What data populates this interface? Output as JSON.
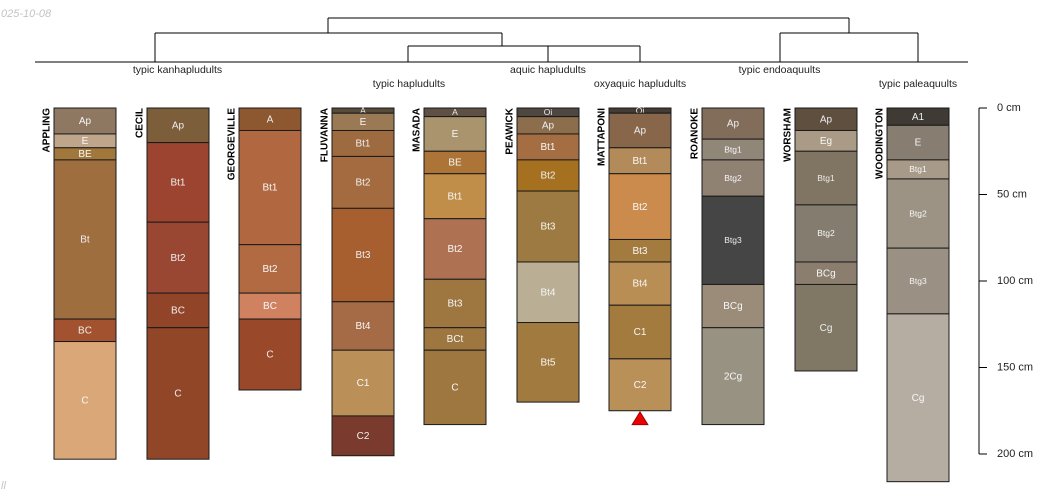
{
  "header": {
    "date_fragment": "025-10-08",
    "corner_fragment": "ll"
  },
  "chart_data": {
    "type": "soil-profile-sketch",
    "depth_unit": "cm",
    "depth_axis": {
      "ticks": [
        0,
        50,
        100,
        150,
        200
      ],
      "tick_labels": [
        "0 cm",
        "50 cm",
        "100 cm",
        "150 cm",
        "200 cm"
      ]
    },
    "groups": [
      {
        "label": "typic kanhapludults",
        "profiles": [
          "APPLING",
          "CECIL",
          "GEORGEVILLE"
        ]
      },
      {
        "label": "typic hapludults",
        "profiles": [
          "FLUVANNA",
          "MASADA"
        ]
      },
      {
        "label": "aquic hapludults",
        "profiles": [
          "PEAWICK"
        ]
      },
      {
        "label": "oxyaquic hapludults",
        "profiles": [
          "MATTAPONI"
        ]
      },
      {
        "label": "typic endoaquults",
        "profiles": [
          "ROANOKE",
          "WORSHAM"
        ]
      },
      {
        "label": "typic paleaquults",
        "profiles": [
          "WOODINGTON"
        ]
      }
    ],
    "profiles": [
      {
        "name": "APPLING",
        "horizons": [
          {
            "name": "Ap",
            "top": 0,
            "bottom": 15,
            "color": "#8F7861"
          },
          {
            "name": "E",
            "top": 15,
            "bottom": 23,
            "color": "#BFA68A"
          },
          {
            "name": "BE",
            "top": 23,
            "bottom": 30,
            "color": "#A2773C"
          },
          {
            "name": "Bt",
            "top": 30,
            "bottom": 122,
            "color": "#9E6E3E"
          },
          {
            "name": "BC",
            "top": 122,
            "bottom": 135,
            "color": "#A2522E"
          },
          {
            "name": "C",
            "top": 135,
            "bottom": 203,
            "color": "#DAA878"
          }
        ]
      },
      {
        "name": "CECIL",
        "horizons": [
          {
            "name": "Ap",
            "top": 0,
            "bottom": 20,
            "color": "#7C5E3B"
          },
          {
            "name": "Bt1",
            "top": 20,
            "bottom": 66,
            "color": "#9D4430"
          },
          {
            "name": "Bt2",
            "top": 66,
            "bottom": 107,
            "color": "#994633"
          },
          {
            "name": "BC",
            "top": 107,
            "bottom": 127,
            "color": "#924429"
          },
          {
            "name": "C",
            "top": 127,
            "bottom": 203,
            "color": "#914628"
          }
        ]
      },
      {
        "name": "GEORGEVILLE",
        "horizons": [
          {
            "name": "A",
            "top": 0,
            "bottom": 13,
            "color": "#8D5730"
          },
          {
            "name": "Bt1",
            "top": 13,
            "bottom": 79,
            "color": "#B16840"
          },
          {
            "name": "Bt2",
            "top": 79,
            "bottom": 107,
            "color": "#B26A43"
          },
          {
            "name": "BC",
            "top": 107,
            "bottom": 122,
            "color": "#D08260"
          },
          {
            "name": "C",
            "top": 122,
            "bottom": 163,
            "color": "#99482A"
          }
        ]
      },
      {
        "name": "FLUVANNA",
        "horizons": [
          {
            "name": "A",
            "top": 0,
            "bottom": 3,
            "color": "#574B3A"
          },
          {
            "name": "E",
            "top": 3,
            "bottom": 13,
            "color": "#9A7A55"
          },
          {
            "name": "Bt1",
            "top": 13,
            "bottom": 28,
            "color": "#9E6A3F"
          },
          {
            "name": "Bt2",
            "top": 28,
            "bottom": 58,
            "color": "#A56B40"
          },
          {
            "name": "Bt3",
            "top": 58,
            "bottom": 112,
            "color": "#A85F30"
          },
          {
            "name": "Bt4",
            "top": 112,
            "bottom": 140,
            "color": "#A56B47"
          },
          {
            "name": "C1",
            "top": 140,
            "bottom": 178,
            "color": "#BA8F58"
          },
          {
            "name": "C2",
            "top": 178,
            "bottom": 201,
            "color": "#7A3A2E"
          }
        ]
      },
      {
        "name": "MASADA",
        "horizons": [
          {
            "name": "A",
            "top": 0,
            "bottom": 5,
            "color": "#5E5044"
          },
          {
            "name": "E",
            "top": 5,
            "bottom": 25,
            "color": "#AA946E"
          },
          {
            "name": "BE",
            "top": 25,
            "bottom": 38,
            "color": "#AC7436"
          },
          {
            "name": "Bt1",
            "top": 38,
            "bottom": 64,
            "color": "#C08E48"
          },
          {
            "name": "Bt2",
            "top": 64,
            "bottom": 99,
            "color": "#AE7151"
          },
          {
            "name": "Bt3",
            "top": 99,
            "bottom": 127,
            "color": "#9E7640"
          },
          {
            "name": "BCt",
            "top": 127,
            "bottom": 140,
            "color": "#9E7640"
          },
          {
            "name": "C",
            "top": 140,
            "bottom": 183,
            "color": "#9E7640"
          }
        ]
      },
      {
        "name": "PEAWICK",
        "horizons": [
          {
            "name": "Oi",
            "top": 0,
            "bottom": 5,
            "color": "#4D4740"
          },
          {
            "name": "Ap",
            "top": 5,
            "bottom": 15,
            "color": "#8C6E4D"
          },
          {
            "name": "Bt1",
            "top": 15,
            "bottom": 30,
            "color": "#A46E42"
          },
          {
            "name": "Bt2",
            "top": 30,
            "bottom": 48,
            "color": "#A57120"
          },
          {
            "name": "Bt3",
            "top": 48,
            "bottom": 89,
            "color": "#9C7A41"
          },
          {
            "name": "Bt4",
            "top": 89,
            "bottom": 124,
            "color": "#BAAE94"
          },
          {
            "name": "Bt5",
            "top": 124,
            "bottom": 170,
            "color": "#A07A3F"
          }
        ]
      },
      {
        "name": "MATTAPONI",
        "horizons": [
          {
            "name": "Oi",
            "top": 0,
            "bottom": 3,
            "color": "#423C35"
          },
          {
            "name": "Ap",
            "top": 3,
            "bottom": 23,
            "color": "#886649"
          },
          {
            "name": "Bt1",
            "top": 23,
            "bottom": 38,
            "color": "#B38A5A"
          },
          {
            "name": "Bt2",
            "top": 38,
            "bottom": 76,
            "color": "#CA8B4C"
          },
          {
            "name": "Bt3",
            "top": 76,
            "bottom": 89,
            "color": "#A37B3F"
          },
          {
            "name": "Bt4",
            "top": 89,
            "bottom": 114,
            "color": "#B88E55"
          },
          {
            "name": "C1",
            "top": 114,
            "bottom": 145,
            "color": "#A37B3F"
          },
          {
            "name": "C2",
            "top": 145,
            "bottom": 175,
            "color": "#BA9059"
          }
        ],
        "marker": "red-triangle"
      },
      {
        "name": "ROANOKE",
        "horizons": [
          {
            "name": "Ap",
            "top": 0,
            "bottom": 18,
            "color": "#826D5A"
          },
          {
            "name": "Btg1",
            "top": 18,
            "bottom": 30,
            "color": "#918779"
          },
          {
            "name": "Btg2",
            "top": 30,
            "bottom": 51,
            "color": "#908272"
          },
          {
            "name": "Btg3",
            "top": 51,
            "bottom": 102,
            "color": "#454545"
          },
          {
            "name": "BCg",
            "top": 102,
            "bottom": 127,
            "color": "#9A8C79"
          },
          {
            "name": "2Cg",
            "top": 127,
            "bottom": 183,
            "color": "#979282"
          }
        ]
      },
      {
        "name": "WORSHAM",
        "horizons": [
          {
            "name": "Ap",
            "top": 0,
            "bottom": 13,
            "color": "#5F4F3F"
          },
          {
            "name": "Eg",
            "top": 13,
            "bottom": 25,
            "color": "#AA9B86"
          },
          {
            "name": "Btg1",
            "top": 25,
            "bottom": 56,
            "color": "#807562"
          },
          {
            "name": "Btg2",
            "top": 56,
            "bottom": 89,
            "color": "#857C70"
          },
          {
            "name": "BCg",
            "top": 89,
            "bottom": 102,
            "color": "#8B7E6E"
          },
          {
            "name": "Cg",
            "top": 102,
            "bottom": 152,
            "color": "#807765"
          }
        ]
      },
      {
        "name": "WOODINGTON",
        "horizons": [
          {
            "name": "A1",
            "top": 0,
            "bottom": 10,
            "color": "#3F3B34"
          },
          {
            "name": "E",
            "top": 10,
            "bottom": 30,
            "color": "#877D70"
          },
          {
            "name": "Btg1",
            "top": 30,
            "bottom": 41,
            "color": "#A89A88"
          },
          {
            "name": "Btg2",
            "top": 41,
            "bottom": 81,
            "color": "#9C9384"
          },
          {
            "name": "Btg3",
            "top": 81,
            "bottom": 119,
            "color": "#9A9083"
          },
          {
            "name": "Cg",
            "top": 119,
            "bottom": 216,
            "color": "#B5ADA1"
          }
        ]
      }
    ]
  }
}
